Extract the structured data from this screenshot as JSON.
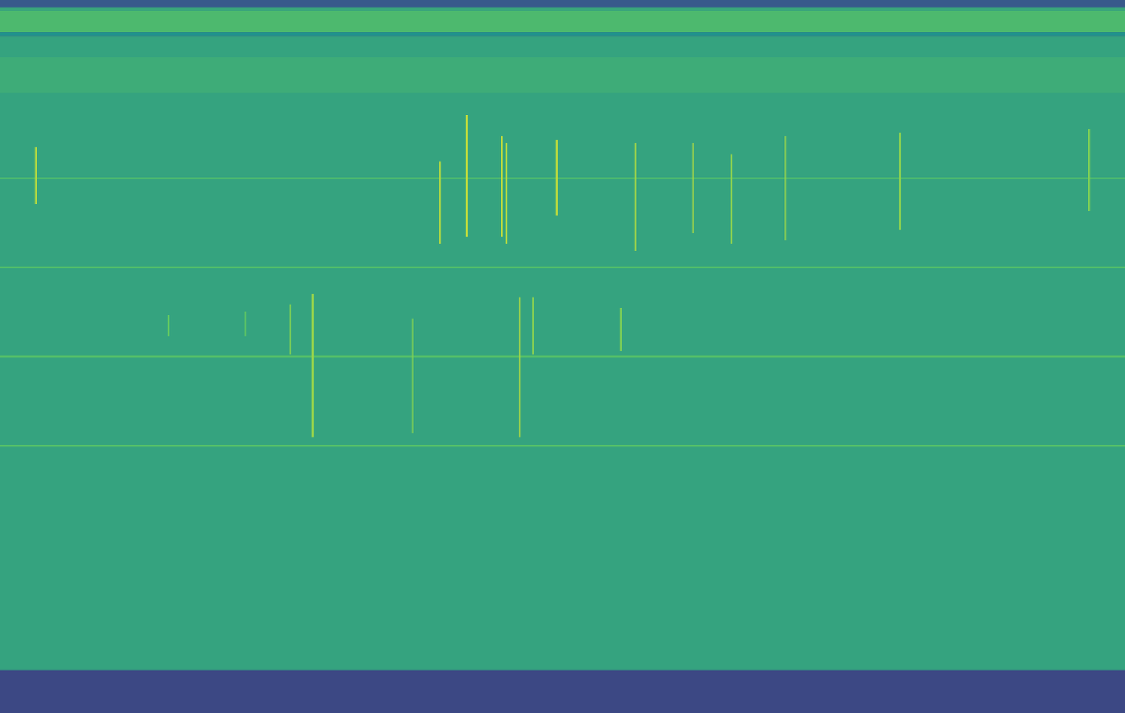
{
  "chart_data": {
    "type": "spectrogram",
    "xlim": [
      0,
      100
    ],
    "ylim": [
      0,
      100
    ],
    "tick_labels": false,
    "grid": false,
    "zlim": [
      0,
      1
    ],
    "bands": [
      {
        "from": 0,
        "to": 6,
        "level": 0.22
      },
      {
        "from": 6,
        "to": 95,
        "level": 0.58
      },
      {
        "from": 87,
        "to": 92,
        "level": 0.62
      },
      {
        "from": 95,
        "to": 95.5,
        "level": 0.5
      },
      {
        "from": 95.5,
        "to": 98.5,
        "level": 0.68
      },
      {
        "from": 98.5,
        "to": 99,
        "level": 0.6
      },
      {
        "from": 99,
        "to": 100,
        "level": 0.28
      }
    ],
    "tones": [
      {
        "frequency": 75,
        "level": 0.74
      },
      {
        "frequency": 62.5,
        "level": 0.72
      },
      {
        "frequency": 50,
        "level": 0.72
      },
      {
        "frequency": 37.5,
        "level": 0.72
      }
    ],
    "clicks": [
      {
        "time": 3.2,
        "from": 71.4,
        "to": 79.4,
        "level": 0.88
      },
      {
        "time": 39.1,
        "from": 65.8,
        "to": 77.4,
        "level": 0.88
      },
      {
        "time": 41.5,
        "from": 66.8,
        "to": 83.9,
        "level": 0.9
      },
      {
        "time": 44.6,
        "from": 66.8,
        "to": 80.9,
        "level": 0.9
      },
      {
        "time": 45.0,
        "from": 65.8,
        "to": 79.9,
        "level": 0.88
      },
      {
        "time": 49.5,
        "from": 69.8,
        "to": 80.4,
        "level": 0.9
      },
      {
        "time": 56.5,
        "from": 64.8,
        "to": 79.9,
        "level": 0.86
      },
      {
        "time": 61.6,
        "from": 67.3,
        "to": 79.9,
        "level": 0.86
      },
      {
        "time": 65.0,
        "from": 65.8,
        "to": 78.4,
        "level": 0.82
      },
      {
        "time": 69.8,
        "from": 66.3,
        "to": 80.9,
        "level": 0.84
      },
      {
        "time": 80.0,
        "from": 67.8,
        "to": 81.4,
        "level": 0.82
      },
      {
        "time": 96.8,
        "from": 70.4,
        "to": 81.9,
        "level": 0.8
      },
      {
        "time": 15.0,
        "from": 52.8,
        "to": 55.8,
        "level": 0.76
      },
      {
        "time": 21.8,
        "from": 52.8,
        "to": 56.3,
        "level": 0.76
      },
      {
        "time": 25.8,
        "from": 50.3,
        "to": 57.3,
        "level": 0.8
      },
      {
        "time": 27.8,
        "from": 38.7,
        "to": 58.8,
        "level": 0.84
      },
      {
        "time": 36.7,
        "from": 39.2,
        "to": 55.3,
        "level": 0.8
      },
      {
        "time": 46.2,
        "from": 38.7,
        "to": 58.3,
        "level": 0.86
      },
      {
        "time": 47.4,
        "from": 50.3,
        "to": 58.3,
        "level": 0.82
      },
      {
        "time": 55.2,
        "from": 50.8,
        "to": 56.8,
        "level": 0.8
      }
    ]
  }
}
